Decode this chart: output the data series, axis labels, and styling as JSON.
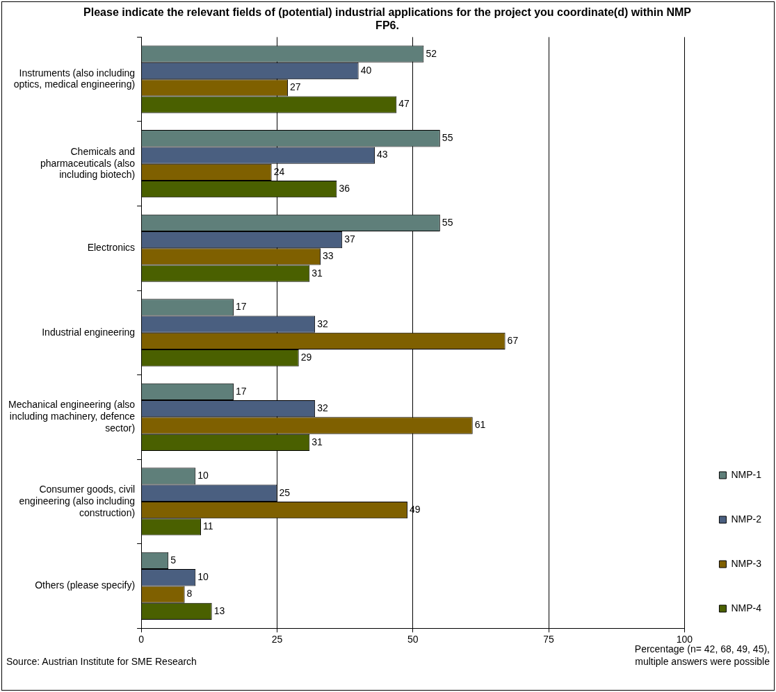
{
  "chart_data": {
    "type": "bar",
    "orientation": "horizontal",
    "title": "Please indicate the relevant fields of (potential) industrial applications for the project you coordinate(d) within NMP FP6.",
    "xlabel": "Percentage (n= 42, 68, 49, 45), multiple answers were possible",
    "categories": [
      "Instruments (also including optics, medical engineering)",
      "Chemicals and pharmaceuticals (also including biotech)",
      "Electronics",
      "Industrial engineering",
      "Mechanical engineering (also including machinery, defence sector)",
      "Consumer goods, civil engineering (also including construction)",
      "Others (please specify)"
    ],
    "series": [
      {
        "name": "NMP-1",
        "color": "#5f7f7a",
        "values": [
          52,
          55,
          55,
          17,
          17,
          10,
          5
        ]
      },
      {
        "name": "NMP-2",
        "color": "#4a5f80",
        "values": [
          40,
          43,
          37,
          32,
          32,
          25,
          10
        ]
      },
      {
        "name": "NMP-3",
        "color": "#7f6000",
        "values": [
          27,
          24,
          33,
          67,
          61,
          49,
          8
        ]
      },
      {
        "name": "NMP-4",
        "color": "#4a6000",
        "values": [
          47,
          36,
          31,
          29,
          31,
          11,
          13
        ]
      }
    ],
    "xlim": [
      0,
      100
    ],
    "xticks": [
      0,
      25,
      50,
      75,
      100
    ],
    "grid": "x",
    "legend": "right",
    "data_labels": true,
    "annotations": [
      "Source: Austrian Institute for SME Research"
    ]
  }
}
